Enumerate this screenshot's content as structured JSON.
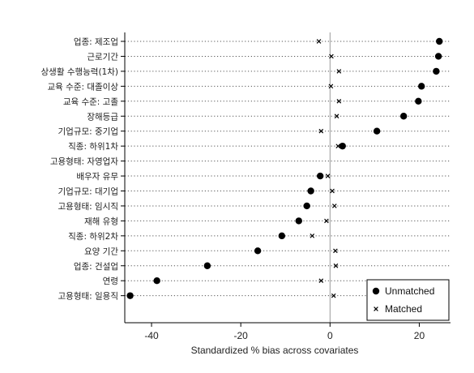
{
  "chart_data": {
    "type": "scatter",
    "xlabel": "Standardized % bias across covariates",
    "ylabel": "",
    "title": "",
    "xlim": [
      -46,
      27
    ],
    "xticks": [
      -40,
      -20,
      0,
      20
    ],
    "reference_line_x": 0,
    "grid": false,
    "legend_position": "bottom-right",
    "categories": [
      "업종: 제조업",
      "근로기간",
      "상생활 수행능력(1차)",
      "교육 수준: 대졸이상",
      "교육 수준: 고졸",
      "장해등급",
      "기업규모: 중기업",
      "직종: 하위1차",
      "고용형태: 자영업자",
      "배우자 유무",
      "기업규모: 대기업",
      "고용형태: 임시직",
      "재해 유형",
      "직종: 하위2차",
      "요양 기간",
      "업종: 건설업",
      "연령",
      "고용형태: 일용직"
    ],
    "series": [
      {
        "name": "Unmatched",
        "marker": "filled-circle",
        "color": "#000000",
        "values": [
          24.5,
          24.3,
          23.8,
          20.5,
          19.8,
          16.5,
          10.5,
          2.8,
          null,
          -2.2,
          -4.3,
          -5.2,
          -7.0,
          -10.8,
          -16.2,
          -27.5,
          -38.8,
          -44.8
        ]
      },
      {
        "name": "Matched",
        "marker": "x",
        "color": "#000000",
        "values": [
          -2.5,
          0.3,
          2.0,
          0.2,
          2.0,
          1.5,
          -2.0,
          1.8,
          null,
          -0.5,
          0.5,
          1.0,
          -0.8,
          -4.0,
          1.2,
          1.3,
          -2.0,
          0.8
        ]
      }
    ]
  }
}
